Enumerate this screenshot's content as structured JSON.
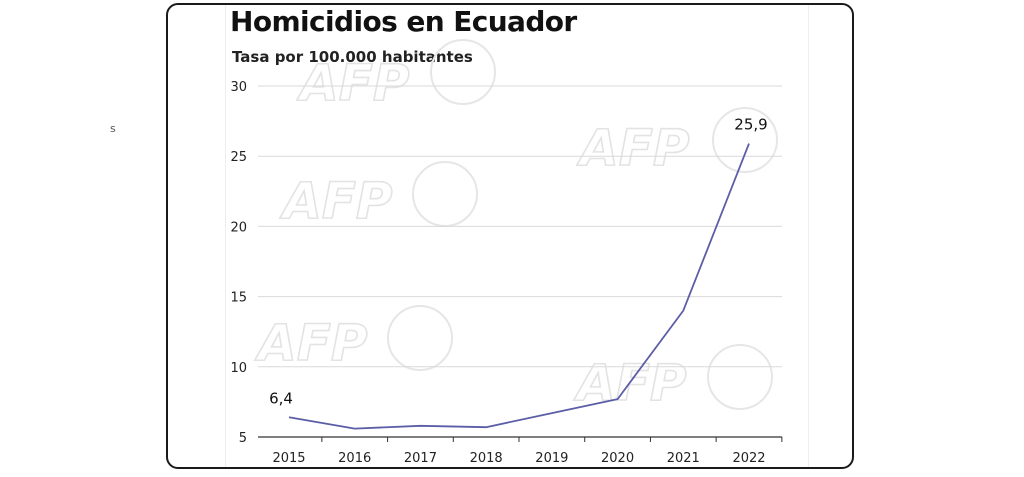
{
  "title": "Homicidios en Ecuador",
  "subtitle": "Tasa por 100.000 habitantes",
  "stray_mark": "s",
  "watermark": "AFP",
  "colors": {
    "line": "#5b5ea6",
    "grid": "#d9d9d9",
    "axis": "#333333",
    "frame": "#1a1a1a"
  },
  "chart_data": {
    "type": "line",
    "title": "Homicidios en Ecuador",
    "subtitle": "Tasa por 100.000 habitantes",
    "xlabel": "",
    "ylabel": "",
    "x": [
      "2015",
      "2016",
      "2017",
      "2018",
      "2019",
      "2020",
      "2021",
      "2022"
    ],
    "series": [
      {
        "values": [
          6.4,
          5.6,
          5.8,
          5.7,
          6.7,
          7.7,
          14.0,
          25.9
        ]
      }
    ],
    "data_labels": [
      {
        "x": "2015",
        "text": "6,4"
      },
      {
        "x": "2022",
        "text": "25,9"
      }
    ],
    "ylim": [
      5,
      30
    ],
    "yticks": [
      5,
      10,
      15,
      20,
      25,
      30
    ],
    "grid": true,
    "legend": "none"
  }
}
